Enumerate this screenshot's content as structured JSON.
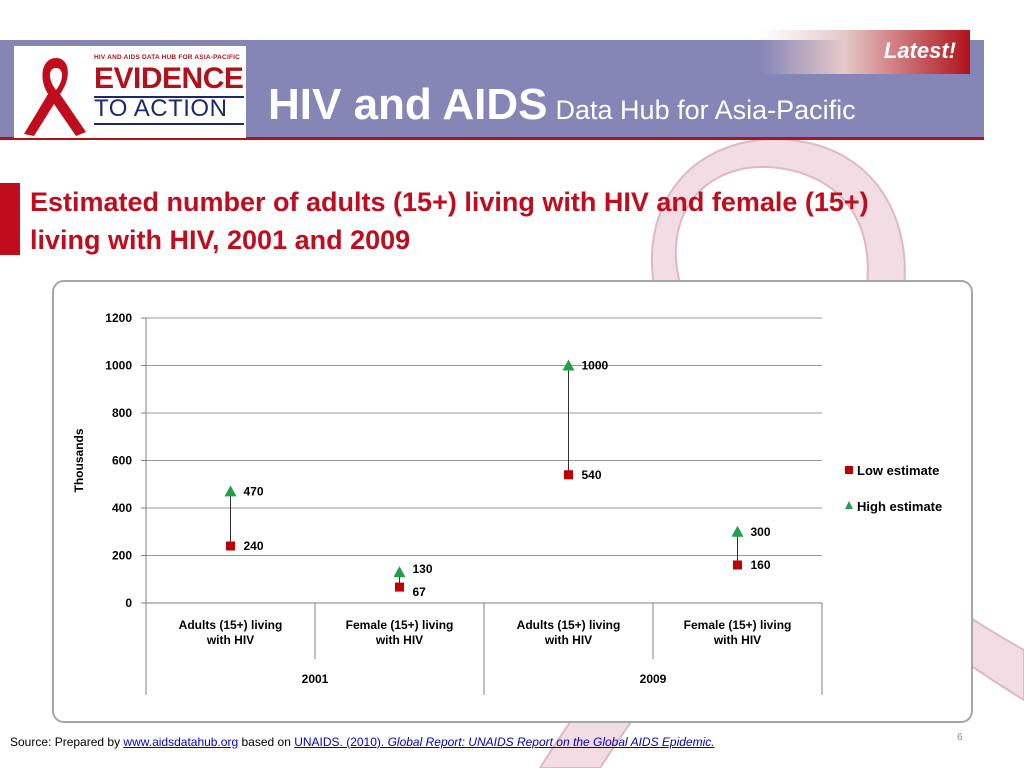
{
  "header": {
    "latest_label": "Latest!",
    "logo_small_text": "HIV AND AIDS DATA HUB FOR ASIA-PACIFIC",
    "logo_big_text": "EVIDENCE",
    "logo_sub_text": "TO ACTION",
    "title_main": "HIV and AIDS",
    "title_sub": "Data Hub for Asia-Pacific"
  },
  "slide_title": "Estimated number of adults (15+) living with HIV and female (15+) living with HIV, 2001 and 2009",
  "chart_data": {
    "type": "scatter",
    "ylabel": "Thousands",
    "ylim": [
      0,
      1200
    ],
    "yticks": [
      0,
      200,
      400,
      600,
      800,
      1000,
      1200
    ],
    "grid": true,
    "categories": [
      "Adults (15+) living with HIV",
      "Female (15+) living with HIV",
      "Adults (15+) living with HIV",
      "Female (15+) living with HIV"
    ],
    "category_lines": [
      [
        "Adults (15+) living",
        "with HIV"
      ],
      [
        "Female (15+) living",
        "with HIV"
      ],
      [
        "Adults (15+) living",
        "with HIV"
      ],
      [
        "Female (15+) living",
        "with HIV"
      ]
    ],
    "groups": [
      {
        "label": "2001",
        "categories": [
          0,
          1
        ]
      },
      {
        "label": "2009",
        "categories": [
          2,
          3
        ]
      }
    ],
    "series": [
      {
        "name": "Low estimate",
        "marker": "square",
        "color": "#c00000",
        "values": [
          240,
          67,
          540,
          160
        ],
        "labels": [
          "240",
          "67",
          "540",
          "160"
        ]
      },
      {
        "name": "High estimate",
        "marker": "triangle",
        "color": "#21a04a",
        "values": [
          470,
          130,
          1000,
          300
        ],
        "labels": [
          "470",
          "130",
          "1000",
          "300"
        ]
      }
    ],
    "legend_position": "right"
  },
  "source": {
    "prefix": "Source: Prepared by ",
    "link1": "www.aidsdatahub.org",
    "middle": "  based on ",
    "link2": "UNAIDS. (2010). ",
    "link2_italic": "Global Report: UNAIDS Report on the Global AIDS Epidemic."
  },
  "page_number": "6",
  "colors": {
    "header_bg": "#8585b6",
    "accent_red": "#c00d1e",
    "ribbon_pink": "#e8c8d0"
  }
}
